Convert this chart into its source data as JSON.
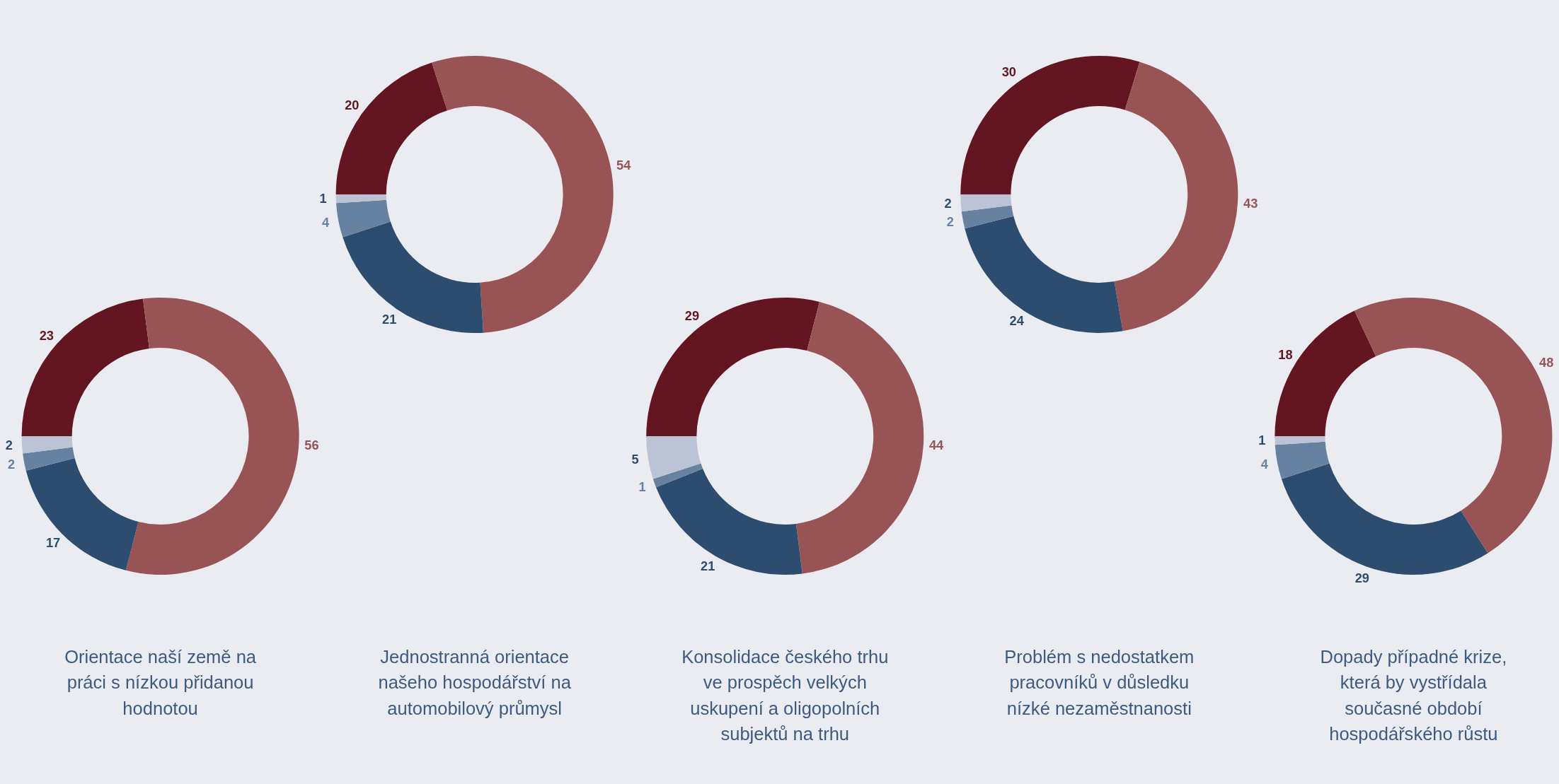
{
  "chart_data": [
    {
      "type": "donut",
      "title": "Orientace naší země na práci s nízkou přidanou hodnotou",
      "categories": [
        null,
        null,
        null,
        null,
        null
      ],
      "values": [
        23,
        56,
        17,
        2,
        2
      ],
      "colors": [
        "#631521",
        "#985455",
        "#2c4d6f",
        "#6782a1",
        "#bcc3d5"
      ],
      "data_labels": true
    },
    {
      "type": "donut",
      "title": "Jednostranná orientace našeho hospodářství na automobilový průmysl",
      "categories": [
        null,
        null,
        null,
        null,
        null
      ],
      "values": [
        20,
        54,
        21,
        4,
        1
      ],
      "colors": [
        "#631521",
        "#985455",
        "#2c4d6f",
        "#6782a1",
        "#bcc3d5"
      ],
      "data_labels": true
    },
    {
      "type": "donut",
      "title": "Konsolidace českého trhu ve prospěch velkých uskupení a oligopolních subjektů na trhu",
      "categories": [
        null,
        null,
        null,
        null,
        null
      ],
      "values": [
        29,
        44,
        21,
        1,
        5
      ],
      "colors": [
        "#631521",
        "#985455",
        "#2c4d6f",
        "#6782a1",
        "#bcc3d5"
      ],
      "data_labels": true
    },
    {
      "type": "donut",
      "title": "Problém s nedostatkem pracovníků v důsledku nízké nezaměstnanosti",
      "categories": [
        null,
        null,
        null,
        null,
        null
      ],
      "values": [
        30,
        43,
        24,
        2,
        2
      ],
      "colors": [
        "#631521",
        "#985455",
        "#2c4d6f",
        "#6782a1",
        "#bcc3d5"
      ],
      "data_labels": true
    },
    {
      "type": "donut",
      "title": "Dopady případné krize, která by vystřídala současné období hospodářského růstu",
      "categories": [
        null,
        null,
        null,
        null,
        null
      ],
      "values": [
        18,
        48,
        29,
        4,
        1
      ],
      "colors": [
        "#631521",
        "#985455",
        "#2c4d6f",
        "#6782a1",
        "#bcc3d5"
      ],
      "data_labels": true
    }
  ]
}
